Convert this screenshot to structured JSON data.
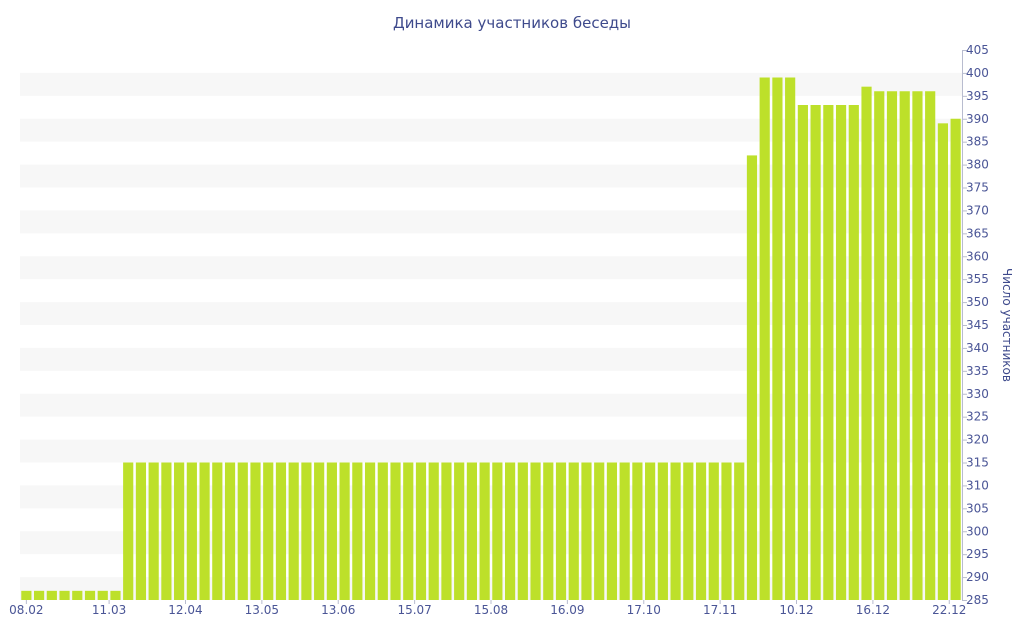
{
  "chart_data": {
    "type": "bar",
    "title": "Динамика участников беседы",
    "xlabel": "",
    "ylabel": "Число участников",
    "ylim": [
      285,
      405
    ],
    "ytick_step": 5,
    "y_axis_side": "right",
    "grid": "horizontal alternating bands",
    "legend": "none",
    "bar_color": "#bde02a",
    "band_color": "#f7f7f7",
    "x_tick_labels": [
      {
        "label": "08.02",
        "index": 0
      },
      {
        "label": "11.03",
        "index": 6.5
      },
      {
        "label": "12.04",
        "index": 12.5
      },
      {
        "label": "13.05",
        "index": 18.5
      },
      {
        "label": "13.06",
        "index": 24.5
      },
      {
        "label": "15.07",
        "index": 30.5
      },
      {
        "label": "15.08",
        "index": 36.5
      },
      {
        "label": "16.09",
        "index": 42.5
      },
      {
        "label": "17.10",
        "index": 48.5
      },
      {
        "label": "17.11",
        "index": 54.5
      },
      {
        "label": "10.12",
        "index": 60.5
      },
      {
        "label": "16.12",
        "index": 66.5
      },
      {
        "label": "22.12",
        "index": 72.5
      }
    ],
    "values": [
      287,
      287,
      287,
      287,
      287,
      287,
      287,
      287,
      315,
      315,
      315,
      315,
      315,
      315,
      315,
      315,
      315,
      315,
      315,
      315,
      315,
      315,
      315,
      315,
      315,
      315,
      315,
      315,
      315,
      315,
      315,
      315,
      315,
      315,
      315,
      315,
      315,
      315,
      315,
      315,
      315,
      315,
      315,
      315,
      315,
      315,
      315,
      315,
      315,
      315,
      315,
      315,
      315,
      315,
      315,
      315,
      315,
      382,
      399,
      399,
      399,
      393,
      393,
      393,
      393,
      393,
      397,
      396,
      396,
      396,
      396,
      396,
      389,
      390
    ]
  }
}
